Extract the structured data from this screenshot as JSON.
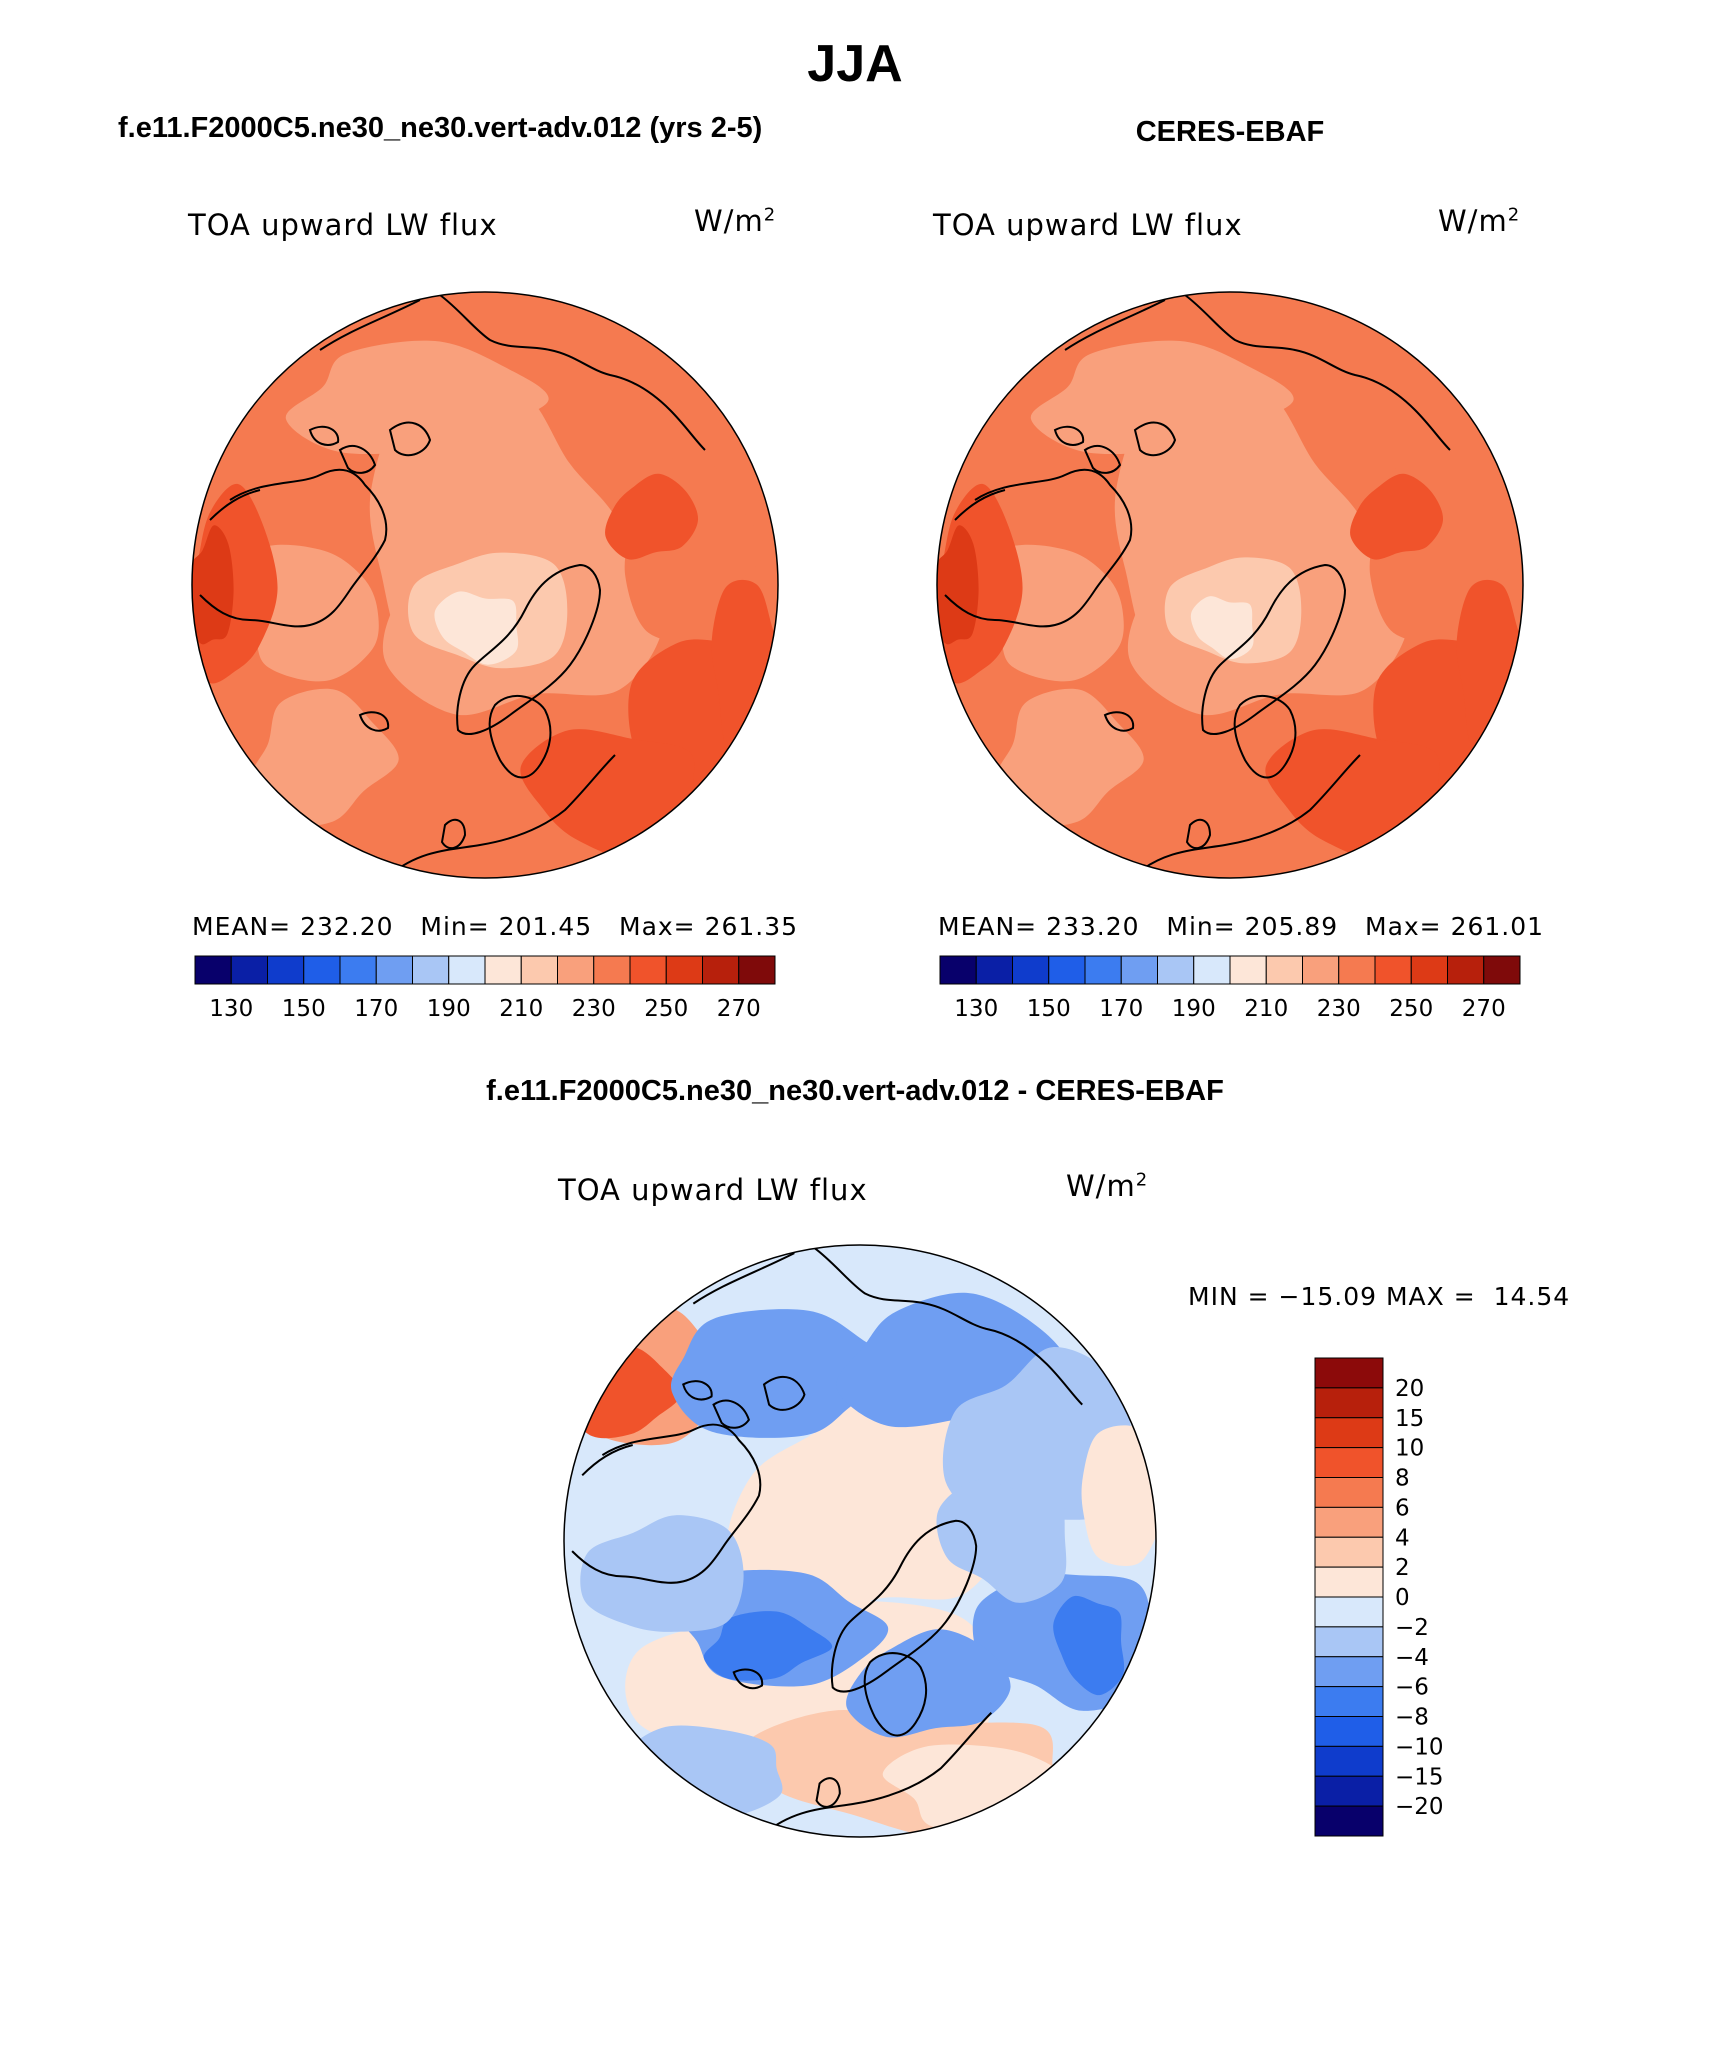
{
  "title": "JJA",
  "panels": [
    {
      "id": "model",
      "header": "f.e11.F2000C5.ne30_ne30.vert-adv.012 (yrs 2-5)",
      "variable": "TOA upward LW flux",
      "unit": "W/m",
      "unit_sup": "2",
      "stats": {
        "mean_label": "MEAN=",
        "mean": "232.20",
        "min_label": "Min=",
        "min": "201.45",
        "max_label": "Max=",
        "max": "261.35"
      }
    },
    {
      "id": "obs",
      "header": "CERES-EBAF",
      "variable": "TOA upward LW flux",
      "unit": "W/m",
      "unit_sup": "2",
      "stats": {
        "mean_label": "MEAN=",
        "mean": "233.20",
        "min_label": "Min=",
        "min": "205.89",
        "max_label": "Max=",
        "max": "261.01"
      }
    },
    {
      "id": "diff",
      "header": "f.e11.F2000C5.ne30_ne30.vert-adv.012 - CERES-EBAF",
      "variable": "TOA upward LW flux",
      "unit": "W/m",
      "unit_sup": "2",
      "stats": {
        "min_label": "MIN =",
        "min": "−15.09",
        "max_label": "MAX =",
        "max": "14.54"
      }
    }
  ],
  "colorbar_abs": {
    "tick_labels": [
      "130",
      "150",
      "170",
      "190",
      "210",
      "230",
      "250",
      "270"
    ],
    "colors": [
      "#08006b",
      "#0a1fa6",
      "#0f3ccc",
      "#1f5ee8",
      "#3c7cf0",
      "#6f9ef2",
      "#a9c6f5",
      "#d8e8fb",
      "#fde6d8",
      "#fcc9ae",
      "#f9a07c",
      "#f57a50",
      "#f0532b",
      "#dd3a16",
      "#b7200c",
      "#7f0a0a"
    ]
  },
  "colorbar_diff": {
    "tick_labels": [
      "20",
      "15",
      "10",
      "8",
      "6",
      "4",
      "2",
      "0",
      "−2",
      "−4",
      "−6",
      "−8",
      "−10",
      "−15",
      "−20"
    ],
    "colors": [
      "#8c0a0a",
      "#b7200c",
      "#dd3a16",
      "#f0532b",
      "#f57a50",
      "#f9a07c",
      "#fcc9ae",
      "#fde6d8",
      "#d8e8fb",
      "#a9c6f5",
      "#6f9ef2",
      "#3c7cf0",
      "#1f5ee8",
      "#0f3ccc",
      "#0a1fa6",
      "#08006b"
    ]
  },
  "map_colors": {
    "model": {
      "base": "#f57a50",
      "low": "#f9a07c",
      "lower": "#fcc9ae",
      "lowest": "#fde6d8",
      "high": "#f0532b",
      "higher": "#dd3a16"
    },
    "obs": {
      "base": "#f57a50",
      "low": "#f9a07c",
      "lower": "#fcc9ae",
      "lowest": "#fde6d8",
      "high": "#f0532b",
      "higher": "#dd3a16"
    },
    "diff": {
      "base": "#d8e8fb",
      "pos1": "#fde6d8",
      "pos2": "#fcc9ae",
      "pos3": "#f9a07c",
      "pos4": "#f0532b",
      "neg1": "#a9c6f5",
      "neg2": "#6f9ef2",
      "neg3": "#3c7cf0"
    }
  }
}
